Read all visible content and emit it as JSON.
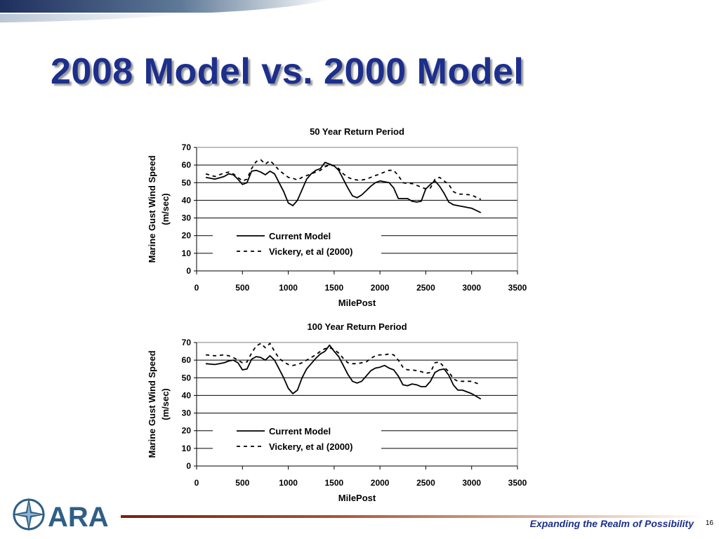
{
  "slide": {
    "title": "2008 Model vs. 2000 Model",
    "tagline": "Expanding the Realm of Possibility",
    "page_number": "16",
    "logo_text": "ARA"
  },
  "colors": {
    "title": "#1c2f8c",
    "title_shadow": "#9a9a9a",
    "tagline": "#1c2f8c",
    "accent_dark": "#7a1f10",
    "logo": "#2f5f86"
  },
  "icons": {
    "logo": "compass-star-icon"
  },
  "chart_data": [
    {
      "type": "line",
      "title": "50 Year Return Period",
      "xlabel": "MilePost",
      "ylabel": "Marine Gust Wind Speed",
      "ylabel_units": "(m/sec)",
      "xlim": [
        0,
        3500
      ],
      "ylim": [
        0,
        70
      ],
      "xticks": [
        0,
        500,
        1000,
        1500,
        2000,
        2500,
        3000,
        3500
      ],
      "yticks": [
        0,
        10,
        20,
        30,
        40,
        50,
        60,
        70
      ],
      "grid": "horizontal",
      "legend": "lower-left",
      "series": [
        {
          "name": "Current Model",
          "style": "solid",
          "x": [
            100,
            200,
            300,
            350,
            400,
            450,
            500,
            550,
            600,
            650,
            700,
            750,
            800,
            850,
            900,
            950,
            1000,
            1050,
            1100,
            1150,
            1200,
            1250,
            1300,
            1350,
            1400,
            1450,
            1500,
            1550,
            1600,
            1650,
            1700,
            1750,
            1800,
            1850,
            1900,
            1950,
            2000,
            2050,
            2100,
            2150,
            2200,
            2250,
            2300,
            2350,
            2400,
            2450,
            2500,
            2550,
            2600,
            2650,
            2700,
            2750,
            2800,
            2850,
            2900,
            3000,
            3100
          ],
          "y": [
            53,
            52,
            53.5,
            55,
            54.5,
            52,
            49,
            50,
            56.5,
            57,
            56,
            54.5,
            56.5,
            55,
            50,
            45,
            38.5,
            37,
            40,
            46,
            52,
            55,
            57,
            58,
            61.5,
            60.5,
            59.5,
            57,
            52,
            47,
            42.5,
            41.5,
            43,
            45.5,
            48,
            50,
            51,
            50.5,
            50,
            47,
            41,
            41,
            41,
            39.5,
            39,
            39.5,
            46.5,
            49,
            51,
            48,
            44,
            39,
            37.5,
            37,
            36.5,
            35.5,
            33
          ]
        },
        {
          "name": "Vickery, et al (2000)",
          "style": "dashed",
          "x": [
            100,
            200,
            300,
            350,
            400,
            450,
            500,
            550,
            600,
            650,
            700,
            750,
            800,
            850,
            900,
            950,
            1000,
            1050,
            1100,
            1150,
            1200,
            1250,
            1300,
            1350,
            1400,
            1450,
            1500,
            1550,
            1600,
            1650,
            1700,
            1750,
            1800,
            1850,
            1900,
            1950,
            2000,
            2050,
            2100,
            2150,
            2200,
            2250,
            2300,
            2350,
            2400,
            2450,
            2500,
            2550,
            2600,
            2650,
            2700,
            2750,
            2800,
            2850,
            2900,
            3000,
            3100
          ],
          "y": [
            55,
            53.5,
            55.5,
            56,
            55,
            53,
            51,
            52,
            58,
            62,
            63,
            60.5,
            62.5,
            60,
            57,
            55,
            53,
            52.5,
            51.5,
            53,
            54,
            55,
            56,
            57,
            59,
            60,
            59.5,
            58,
            55,
            53,
            52,
            51.5,
            51.5,
            52,
            53,
            54,
            55,
            56,
            57,
            57,
            54,
            50,
            49.5,
            49.5,
            48.5,
            47.5,
            46.5,
            47,
            52,
            53,
            51,
            49,
            45,
            43.5,
            43.5,
            43,
            40.5
          ]
        }
      ]
    },
    {
      "type": "line",
      "title": "100 Year Return Period",
      "xlabel": "MilePost",
      "ylabel": "Marine Gust Wind Speed",
      "ylabel_units": "(m/sec)",
      "xlim": [
        0,
        3500
      ],
      "ylim": [
        0,
        70
      ],
      "xticks": [
        0,
        500,
        1000,
        1500,
        2000,
        2500,
        3000,
        3500
      ],
      "yticks": [
        0,
        10,
        20,
        30,
        40,
        50,
        60,
        70
      ],
      "grid": "horizontal",
      "legend": "lower-left",
      "series": [
        {
          "name": "Current Model",
          "style": "solid",
          "x": [
            100,
            200,
            300,
            350,
            400,
            450,
            500,
            550,
            600,
            650,
            700,
            750,
            800,
            850,
            900,
            950,
            1000,
            1050,
            1100,
            1150,
            1200,
            1250,
            1300,
            1350,
            1400,
            1450,
            1500,
            1550,
            1600,
            1650,
            1700,
            1750,
            1800,
            1850,
            1900,
            1950,
            2000,
            2050,
            2100,
            2150,
            2200,
            2250,
            2300,
            2350,
            2400,
            2450,
            2500,
            2550,
            2600,
            2650,
            2700,
            2750,
            2800,
            2850,
            2900,
            3000,
            3100
          ],
          "y": [
            58,
            57.5,
            58.5,
            59.5,
            60,
            58.5,
            54.5,
            55,
            60.5,
            62,
            61.5,
            60,
            62.5,
            60,
            55,
            50,
            44,
            41,
            43,
            50,
            55,
            58,
            61,
            63.5,
            65,
            68.5,
            65,
            62,
            57,
            52,
            48,
            47,
            48,
            51,
            54,
            55.5,
            56,
            57,
            55.5,
            54.5,
            51,
            46,
            45.5,
            46.5,
            46,
            45,
            45,
            48,
            53,
            54.5,
            55,
            51.5,
            46,
            43,
            43,
            41,
            38
          ]
        },
        {
          "name": "Vickery, et al (2000)",
          "style": "dashed",
          "x": [
            100,
            200,
            300,
            350,
            400,
            450,
            500,
            550,
            600,
            650,
            700,
            750,
            800,
            850,
            900,
            950,
            1000,
            1050,
            1100,
            1150,
            1200,
            1250,
            1300,
            1350,
            1400,
            1450,
            1500,
            1550,
            1600,
            1650,
            1700,
            1750,
            1800,
            1850,
            1900,
            1950,
            2000,
            2050,
            2100,
            2150,
            2200,
            2250,
            2300,
            2350,
            2400,
            2450,
            2500,
            2550,
            2600,
            2650,
            2700,
            2750,
            2800,
            2850,
            2900,
            3000,
            3100
          ],
          "y": [
            63,
            62.5,
            63,
            62.5,
            61.5,
            60,
            58.5,
            59,
            64,
            68,
            69.5,
            67,
            69.5,
            65,
            61,
            59,
            57.5,
            57,
            57.5,
            58.5,
            60,
            61.5,
            63,
            65,
            66.5,
            67,
            66,
            64,
            61,
            58.5,
            58,
            58,
            58.5,
            59,
            61,
            62.5,
            63,
            63,
            63.5,
            63,
            60,
            56,
            54.5,
            54.5,
            54,
            53.5,
            52.5,
            53,
            58.5,
            59,
            56,
            53.5,
            49.5,
            48,
            48,
            48,
            46
          ]
        }
      ]
    }
  ]
}
